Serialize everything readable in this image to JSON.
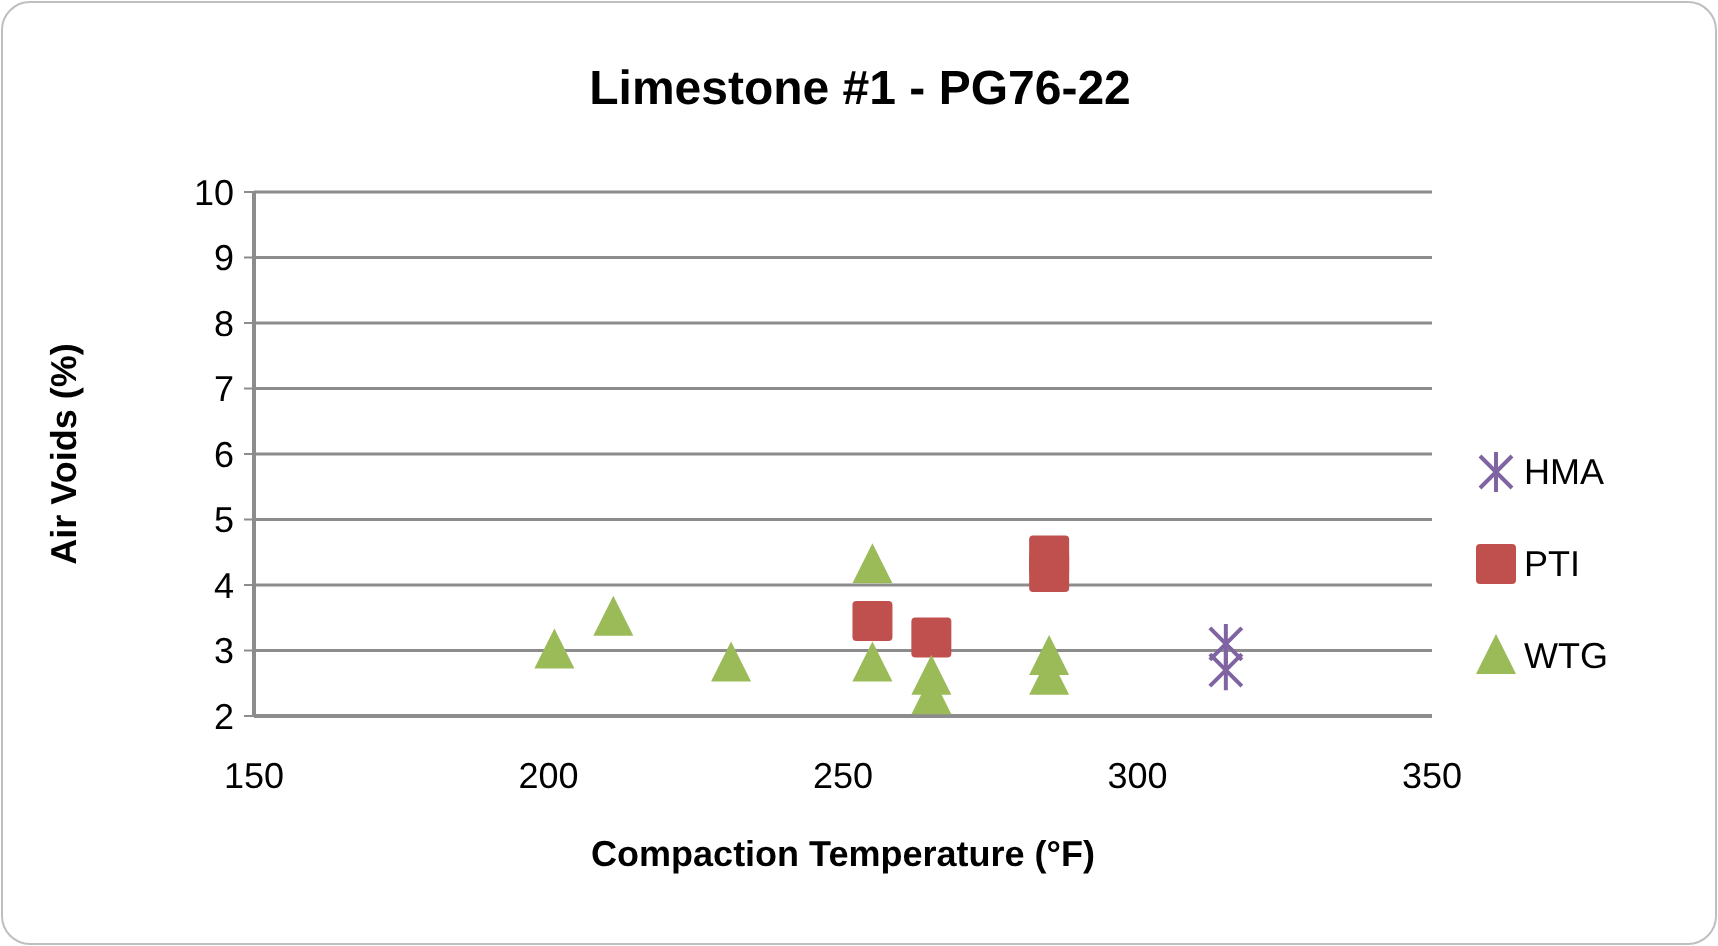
{
  "chart_data": {
    "type": "scatter",
    "title": "Limestone #1 - PG76-22",
    "xlabel": "Compaction Temperature (°F)",
    "ylabel": "Air Voids (%)",
    "xlim": [
      150,
      350
    ],
    "xticks": [
      150,
      200,
      250,
      300,
      350
    ],
    "ylim": [
      2,
      10
    ],
    "yticks": [
      2,
      3,
      4,
      5,
      6,
      7,
      8,
      9,
      10
    ],
    "grid": "y",
    "legend": "right",
    "series": [
      {
        "name": "HMA",
        "color": "#8064a2",
        "marker": "cross",
        "x": [
          315,
          315
        ],
        "values": [
          3.1,
          2.7
        ]
      },
      {
        "name": "PTI",
        "color": "#c0504d",
        "marker": "square",
        "x": [
          255,
          265,
          285,
          285
        ],
        "values": [
          3.45,
          3.2,
          4.45,
          4.2
        ]
      },
      {
        "name": "WTG",
        "color": "#9bbb59",
        "marker": "triangle",
        "x": [
          201,
          211,
          231,
          255,
          255,
          265,
          265,
          285,
          285
        ],
        "values": [
          3.0,
          3.5,
          2.8,
          4.3,
          2.8,
          2.6,
          2.3,
          2.9,
          2.6
        ]
      }
    ]
  }
}
